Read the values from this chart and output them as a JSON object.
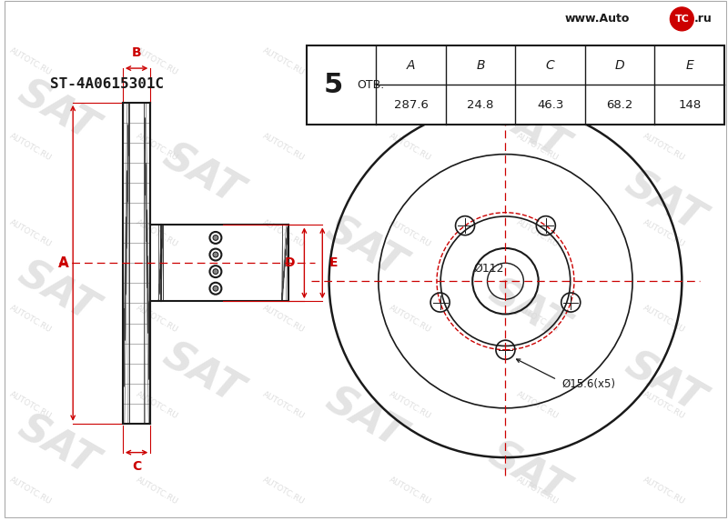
{
  "bg_color": "#ffffff",
  "line_color": "#1a1a1a",
  "red_color": "#cc0000",
  "part_number": "ST-4A0615301C",
  "bolt_count": "5",
  "bolt_label": "ОТВ.",
  "table_headers": [
    "A",
    "B",
    "C",
    "D",
    "E"
  ],
  "table_values": [
    "287.6",
    "24.8",
    "46.3",
    "68.2",
    "148"
  ],
  "dim_A": 287.6,
  "dim_B": 24.8,
  "dim_C": 46.3,
  "dim_D": 68.2,
  "dim_E": 148.0,
  "dia_bolt_label": "Ø15.6(x5)",
  "dia_pcd_label": "Ø112",
  "n_bolts": 5,
  "pcd_mm": 112,
  "bolt_hole_mm": 15.6,
  "watermark_color": "#d8d8d8",
  "logo_url": "www.Auto",
  "logo_tc": "TC",
  "logo_ru": ".ru"
}
